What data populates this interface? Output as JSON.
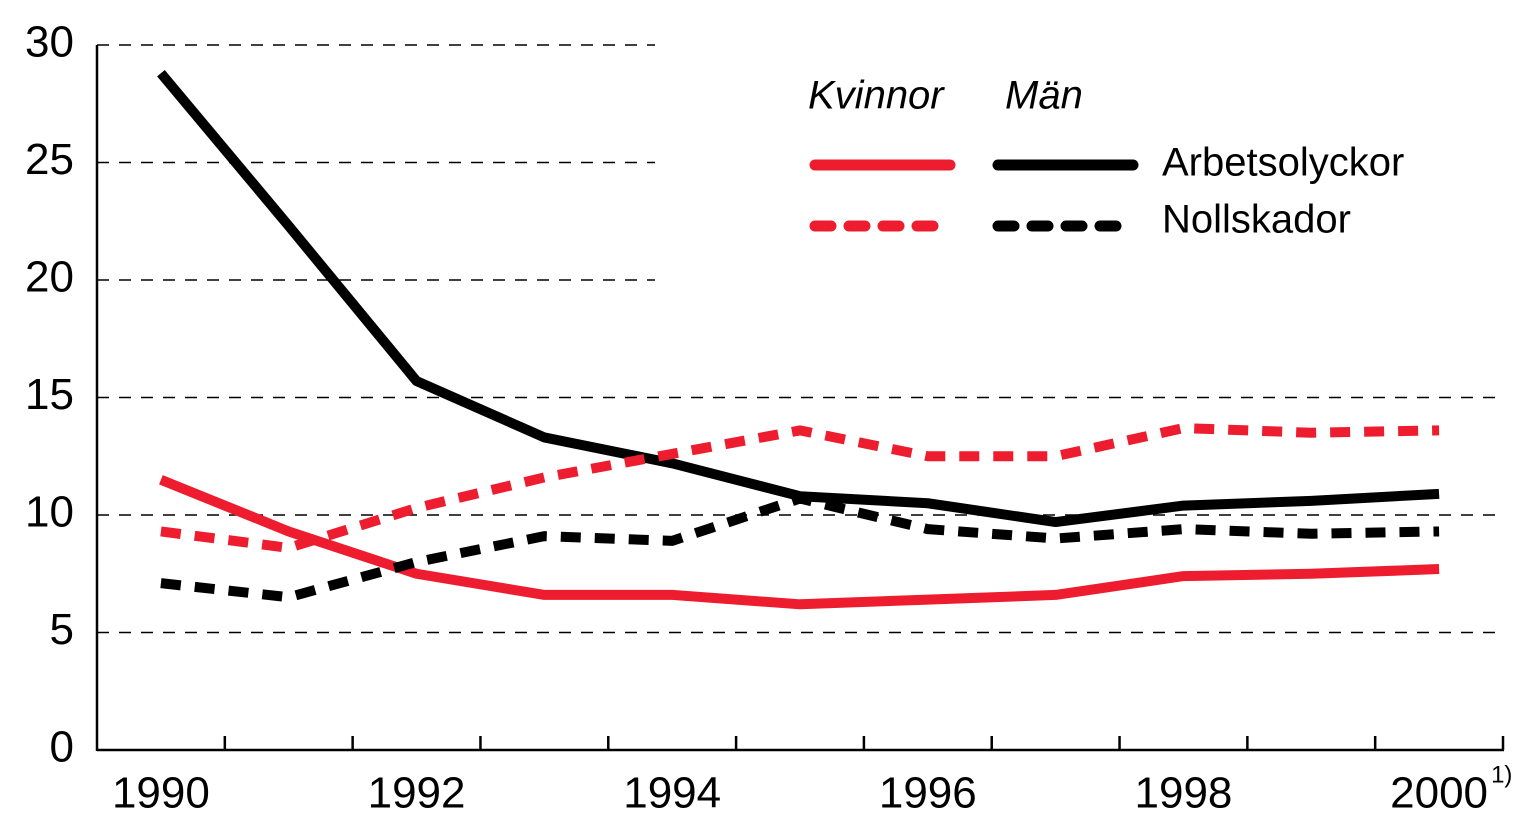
{
  "chart_data": {
    "type": "line",
    "categories": [
      "1990",
      null,
      "1992",
      null,
      "1994",
      null,
      "1996",
      null,
      "1998",
      null,
      "2000"
    ],
    "annotation": "1)",
    "ylim": [
      0,
      30
    ],
    "yticks": [
      0,
      5,
      10,
      15,
      20,
      25,
      30
    ],
    "grid": true,
    "series": [
      {
        "name": "Arbetsolyckor",
        "group": "Kvinnor",
        "color": "#ed1c2e",
        "style": "solid",
        "values": [
          11.5,
          9.3,
          7.5,
          6.6,
          6.6,
          6.2,
          6.4,
          6.6,
          7.4,
          7.5,
          7.7
        ]
      },
      {
        "name": "Arbetsolyckor",
        "group": "Män",
        "color": "#000000",
        "style": "solid",
        "values": [
          28.8,
          22.3,
          15.7,
          13.3,
          12.2,
          10.8,
          10.5,
          9.7,
          10.4,
          10.6,
          10.9
        ]
      },
      {
        "name": "Nollskador",
        "group": "Kvinnor",
        "color": "#ed1c2e",
        "style": "dashed",
        "values": [
          9.3,
          8.6,
          10.3,
          11.6,
          12.6,
          13.6,
          12.5,
          12.5,
          13.7,
          13.5,
          13.6
        ]
      },
      {
        "name": "Nollskador",
        "group": "Män",
        "color": "#000000",
        "style": "dashed",
        "values": [
          7.1,
          6.5,
          8.0,
          9.1,
          8.9,
          10.7,
          9.4,
          9.0,
          9.4,
          9.2,
          9.3
        ]
      }
    ]
  }
}
